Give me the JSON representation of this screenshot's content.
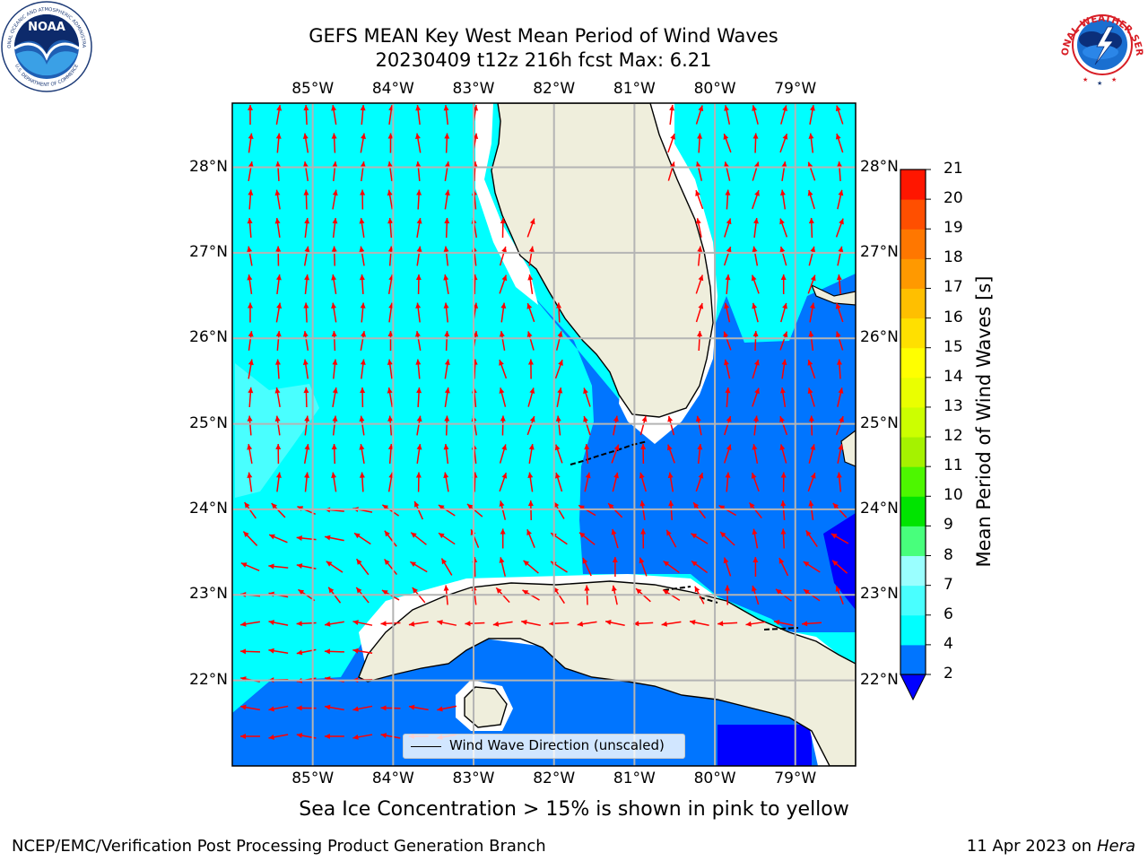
{
  "title": {
    "line1": "GEFS MEAN Key West Mean Period of Wind Waves",
    "line2": "20230409 t12z 216h fcst   Max: 6.21"
  },
  "logos": {
    "left": {
      "name": "NOAA",
      "ring_text": "NATIONAL OCEANIC AND ATMOSPHERIC ADMINISTRATION",
      "bottom_text": "U.S. DEPARTMENT OF COMMERCE"
    },
    "right": {
      "ring_text": "NATIONAL WEATHER SERVICE"
    }
  },
  "map": {
    "lon_labels": [
      "85°W",
      "84°W",
      "83°W",
      "82°W",
      "81°W",
      "80°W",
      "79°W"
    ],
    "lon_values": [
      -85,
      -84,
      -83,
      -82,
      -81,
      -80,
      -79
    ],
    "lat_labels": [
      "28°N",
      "27°N",
      "26°N",
      "25°N",
      "24°N",
      "23°N",
      "22°N"
    ],
    "lat_values": [
      28,
      27,
      26,
      25,
      24,
      23,
      22
    ],
    "extent": {
      "lon_min": -86.0,
      "lon_max": -78.25,
      "lat_min": 21.0,
      "lat_max": 28.75
    },
    "colors": {
      "land": "#efeedc",
      "gridline": "#b4b4b4",
      "arrow": "#ff0000",
      "coast": "#000000"
    },
    "legend_label": "Wind Wave Direction (unscaled)"
  },
  "colorbar": {
    "label": "Mean Period of Wind Waves [s]",
    "tick_labels": [
      "2",
      "4",
      "6",
      "7",
      "8",
      "9",
      "10",
      "11",
      "12",
      "13",
      "14",
      "15",
      "16",
      "17",
      "18",
      "19",
      "20",
      "21"
    ],
    "levels": [
      2,
      4,
      6,
      7,
      8,
      9,
      10,
      11,
      12,
      13,
      14,
      15,
      16,
      17,
      18,
      19,
      20,
      21
    ],
    "colors": [
      "#0075ff",
      "#00ffff",
      "#49ffff",
      "#9affff",
      "#48ff7c",
      "#00e400",
      "#4df700",
      "#a5f200",
      "#ccff00",
      "#eaff00",
      "#ffff00",
      "#ffe000",
      "#ffbf00",
      "#ff9900",
      "#ff7700",
      "#ff4f00",
      "#ff1600"
    ],
    "under_color": "#0000ff"
  },
  "subtitle": "Sea Ice Concentration > 15% is shown in pink to yellow",
  "footer": {
    "left": "NCEP/EMC/Verification Post Processing Product Generation Branch",
    "date": "11 Apr 2023 on ",
    "host": "Hera"
  }
}
